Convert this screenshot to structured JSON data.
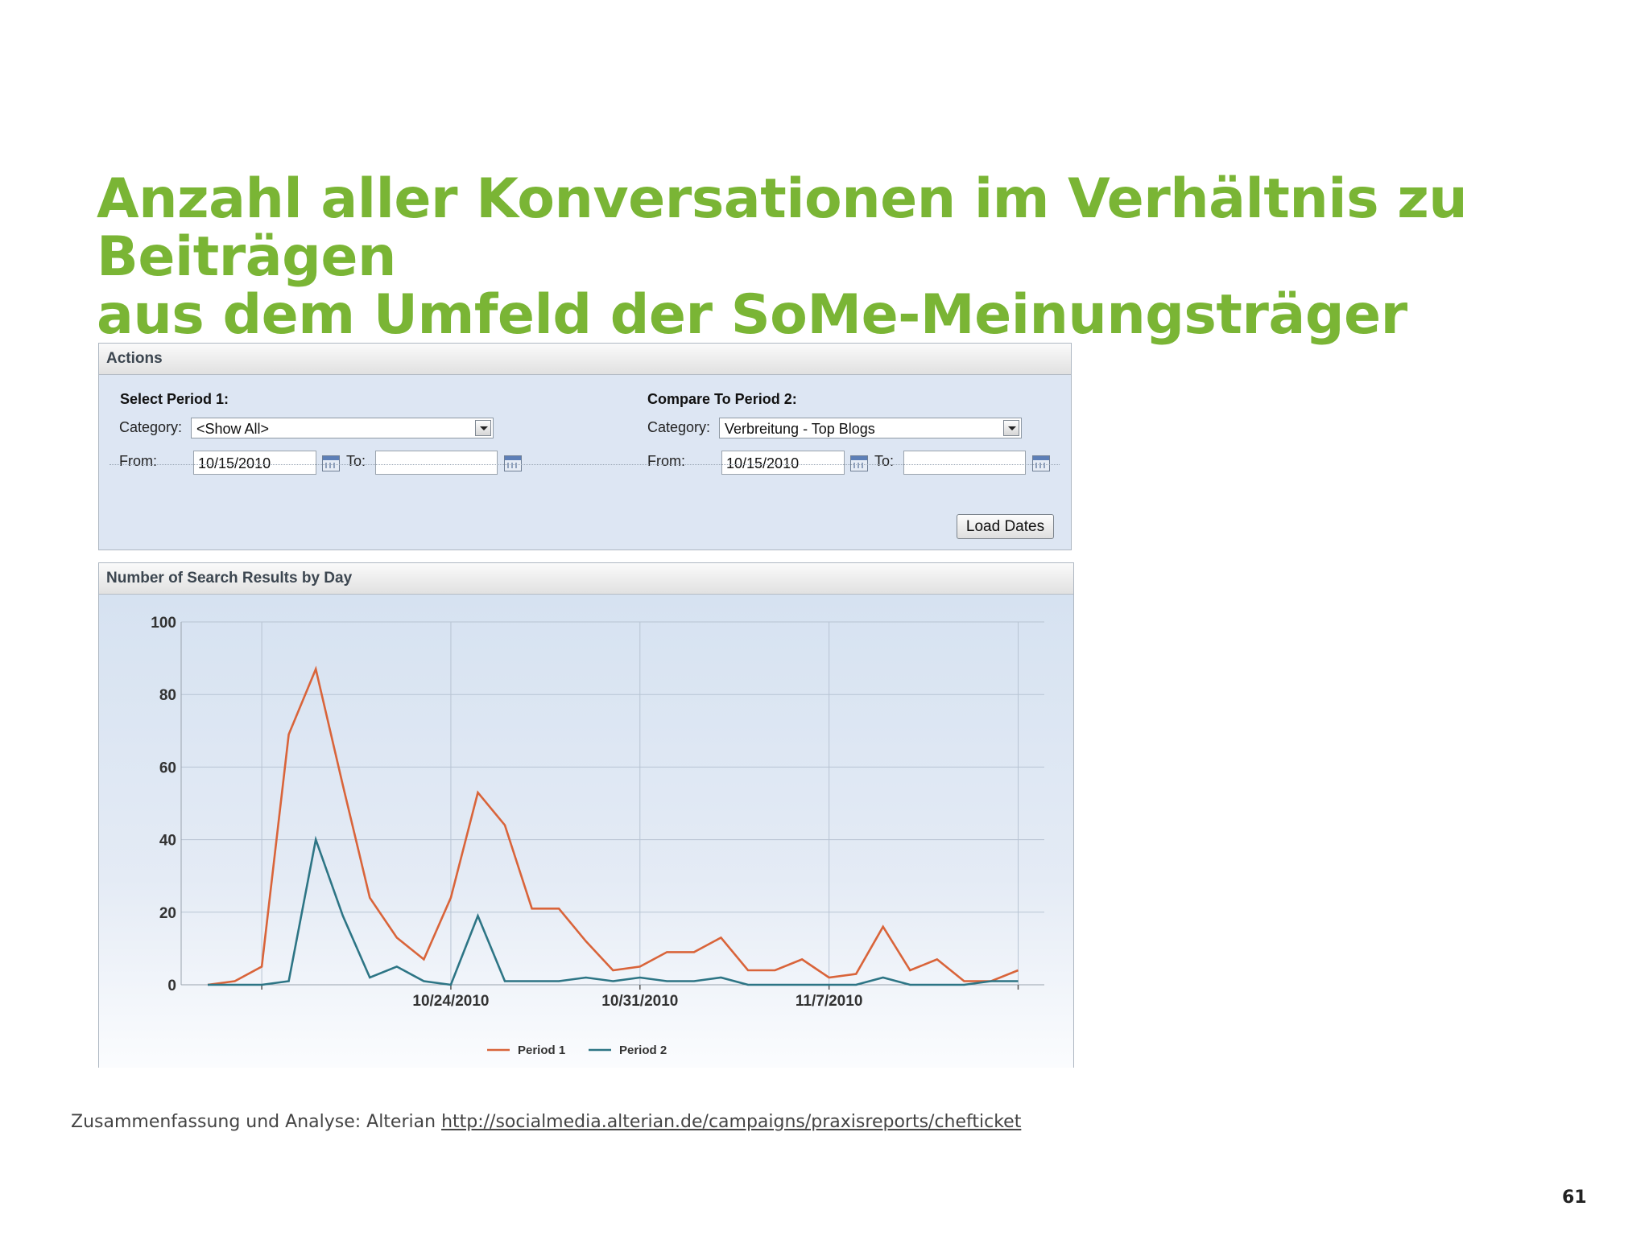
{
  "slide": {
    "title_lines": [
      "Anzahl aller Konversationen im Verhältnis zu Beiträgen",
      "aus dem Umfeld der SoMe-Meinungsträger"
    ],
    "footer_text": "Zusammenfassung und Analyse: Alterian",
    "footer_link": "http://socialmedia.alterian.de/campaigns/praxisreports/chefticket",
    "page_number": "61"
  },
  "actions_panel": {
    "header": "Actions",
    "period1": {
      "title": "Select Period 1:",
      "category_label": "Category:",
      "category_value": "<Show All>",
      "from_label": "From:",
      "from_value": "10/15/2010",
      "to_label": "To:",
      "to_value": ""
    },
    "period2": {
      "title": "Compare To Period 2:",
      "category_label": "Category:",
      "category_value": "Verbreitung - Top Blogs",
      "from_label": "From:",
      "from_value": "10/15/2010",
      "to_label": "To:",
      "to_value": ""
    },
    "load_button": "Load Dates"
  },
  "chart_panel": {
    "header": "Number of Search Results by Day"
  },
  "colors": {
    "title_green": "#7ab535",
    "period1": "#d9643a",
    "period2": "#2d7585",
    "panel_bg": "#dde6f3"
  },
  "icons": [
    "dropdown-arrow-icon",
    "calendar-icon"
  ],
  "chart_data": {
    "type": "line",
    "title": "Number of Search Results by Day",
    "x_tick_labels": [
      "10/24/2010",
      "10/31/2010",
      "11/7/2010"
    ],
    "x_tick_days": [
      9,
      16,
      23
    ],
    "ylim": [
      0,
      100
    ],
    "yticks": [
      0,
      20,
      40,
      60,
      80,
      100
    ],
    "grid": true,
    "legend_position": "bottom",
    "series": [
      {
        "name": "Period 1",
        "color": "#d9643a",
        "values": [
          0,
          1,
          5,
          69,
          87,
          55,
          24,
          13,
          7,
          24,
          53,
          44,
          21,
          21,
          12,
          4,
          5,
          9,
          9,
          13,
          4,
          4,
          7,
          2,
          3,
          16,
          4,
          7,
          1,
          1,
          4
        ]
      },
      {
        "name": "Period 2",
        "color": "#2d7585",
        "values": [
          0,
          0,
          0,
          1,
          40,
          19,
          2,
          5,
          1,
          0,
          19,
          1,
          1,
          1,
          2,
          1,
          2,
          1,
          1,
          2,
          0,
          0,
          0,
          0,
          0,
          2,
          0,
          0,
          0,
          1,
          1
        ]
      }
    ]
  }
}
